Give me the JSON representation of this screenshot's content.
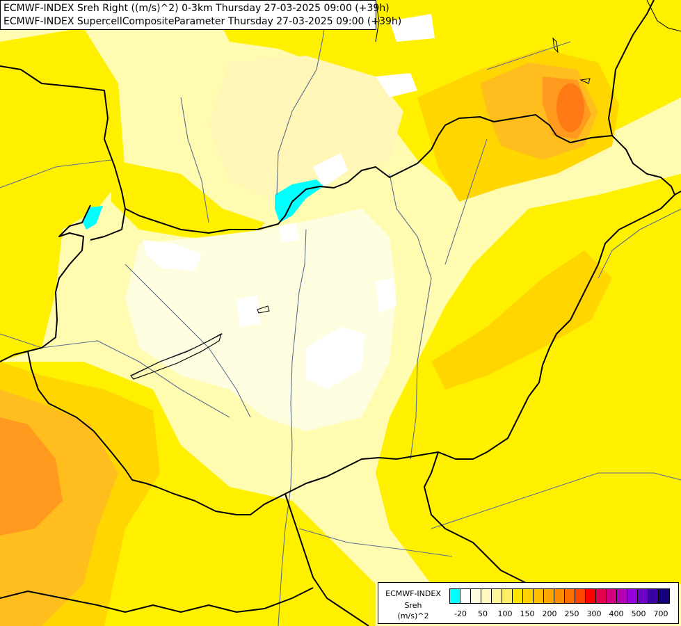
{
  "title": {
    "line1": "ECMWF-INDEX Sreh Right ((m/s)^2) 0-3km Thursday 27-03-2025 09:00 (+39h)",
    "line2": "ECMWF-INDEX SupercellCompositeParameter Thursday 27-03-2025 09:00 (+39h)"
  },
  "legend": {
    "name": "ECMWF-INDEX",
    "param": "Sreh",
    "unit": "(m/s)^2",
    "colors": [
      "#00ffff",
      "#ffffff",
      "#fffde0",
      "#fff8c0",
      "#fff59a",
      "#ffee66",
      "#ffe600",
      "#ffd200",
      "#ffbe00",
      "#ffa500",
      "#ff8c00",
      "#ff6e00",
      "#ff4400",
      "#ff0000",
      "#e60050",
      "#d20080",
      "#b400b4",
      "#9600dc",
      "#6e00c8",
      "#3c00a0",
      "#14007a"
    ],
    "ticks": [
      "-20",
      "50",
      "100",
      "150",
      "200",
      "250",
      "300",
      "400",
      "500",
      "700"
    ]
  },
  "map": {
    "field_colors": {
      "light": "#fffbb0",
      "pale": "#fff6b8",
      "yellow": "#fff000",
      "gold": "#ffd600",
      "amber": "#ffbe1e",
      "orange": "#ff9a1e",
      "deep_orange": "#ff7a14",
      "white": "#ffffff",
      "cyan": "#00ffff"
    }
  }
}
